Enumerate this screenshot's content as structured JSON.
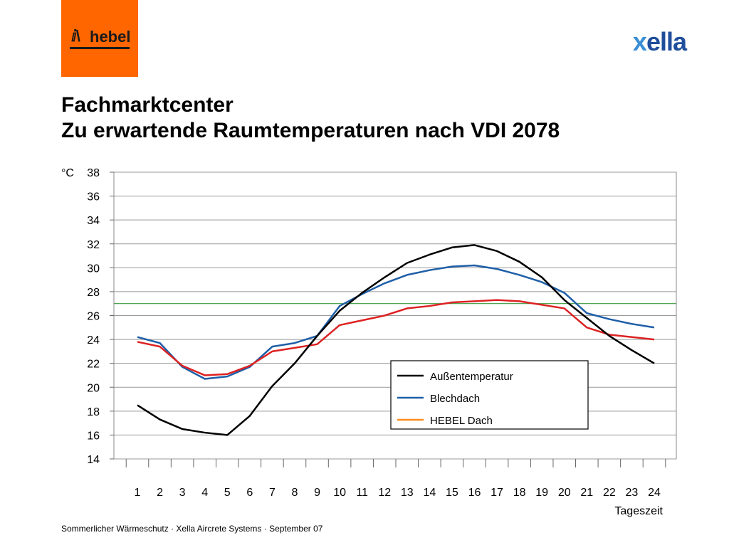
{
  "logos": {
    "left": {
      "mark": "ⅈ\\",
      "text": "hebel",
      "color": "#ff6600"
    },
    "right": {
      "x": "x",
      "rest": "ella",
      "color": "#1f4e9a"
    }
  },
  "title": {
    "line1": "Fachmarktcenter",
    "line2": "Zu erwartende Raumtemperaturen nach VDI 2078"
  },
  "footer": "Sommerlicher Wärmeschutz · Xella Aircrete Systems · September 07",
  "chart_data": {
    "type": "line",
    "ylabel": "°C",
    "xlabel": "Tageszeit",
    "ylim": [
      14,
      38
    ],
    "yticks": [
      14,
      16,
      18,
      20,
      22,
      24,
      26,
      28,
      30,
      32,
      34,
      36,
      38
    ],
    "x": [
      1,
      2,
      3,
      4,
      5,
      6,
      7,
      8,
      9,
      10,
      11,
      12,
      13,
      14,
      15,
      16,
      17,
      18,
      19,
      20,
      21,
      22,
      23,
      24
    ],
    "grid": true,
    "reference_line": {
      "value": 27,
      "color": "#3a9a3a"
    },
    "legend_position": "lower-right",
    "series": [
      {
        "name": "Außentemperatur",
        "color": "#000000",
        "values": [
          18.5,
          17.3,
          16.5,
          16.2,
          16.0,
          17.6,
          20.1,
          22.0,
          24.3,
          26.4,
          27.9,
          29.2,
          30.4,
          31.1,
          31.7,
          31.9,
          31.4,
          30.5,
          29.2,
          27.3,
          25.8,
          24.3,
          23.1,
          22.0
        ]
      },
      {
        "name": "Blechdach",
        "color": "#1f5fa8",
        "values": [
          24.2,
          23.7,
          21.7,
          20.7,
          20.9,
          21.7,
          23.4,
          23.7,
          24.3,
          26.8,
          27.8,
          28.7,
          29.4,
          29.8,
          30.1,
          30.2,
          29.9,
          29.4,
          28.8,
          27.9,
          26.2,
          25.7,
          25.3,
          25.0
        ]
      },
      {
        "name": "HEBEL Dach",
        "color": "#dd2222",
        "legend_color": "#ff8c1a",
        "values": [
          23.8,
          23.4,
          21.8,
          21.0,
          21.1,
          21.8,
          23.0,
          23.3,
          23.6,
          25.2,
          25.6,
          26.0,
          26.6,
          26.8,
          27.1,
          27.2,
          27.3,
          27.2,
          26.9,
          26.6,
          25.0,
          24.4,
          24.2,
          24.0
        ]
      }
    ]
  }
}
